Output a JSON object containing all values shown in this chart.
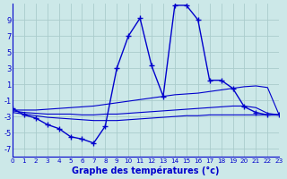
{
  "xlabel": "Graphe des températures (°c)",
  "background_color": "#cce8e8",
  "grid_color": "#aacccc",
  "line_color": "#0000cc",
  "hours": [
    0,
    1,
    2,
    3,
    4,
    5,
    6,
    7,
    8,
    9,
    10,
    11,
    12,
    13,
    14,
    15,
    16,
    17,
    18,
    19,
    20,
    21,
    22,
    23
  ],
  "temp_current": [
    -2.0,
    -2.8,
    -3.2,
    -4.0,
    -4.5,
    -5.5,
    -5.8,
    -6.3,
    -4.2,
    3.0,
    7.0,
    9.2,
    3.3,
    -0.5,
    10.8,
    10.8,
    9.0,
    1.5,
    1.5,
    0.5,
    -1.8,
    -2.5,
    -2.8,
    -2.8
  ],
  "temp_line1": [
    -2.2,
    -2.2,
    -2.2,
    -2.1,
    -2.0,
    -1.9,
    -1.8,
    -1.7,
    -1.5,
    -1.3,
    -1.1,
    -0.9,
    -0.7,
    -0.5,
    -0.3,
    -0.2,
    -0.1,
    0.1,
    0.3,
    0.5,
    0.7,
    0.8,
    0.6,
    -2.8
  ],
  "temp_line2": [
    -2.5,
    -2.7,
    -2.9,
    -3.1,
    -3.2,
    -3.3,
    -3.4,
    -3.5,
    -3.5,
    -3.5,
    -3.4,
    -3.3,
    -3.2,
    -3.1,
    -3.0,
    -2.9,
    -2.9,
    -2.8,
    -2.8,
    -2.8,
    -2.8,
    -2.8,
    -2.8,
    -2.8
  ],
  "temp_line3": [
    -2.3,
    -2.5,
    -2.6,
    -2.7,
    -2.7,
    -2.7,
    -2.8,
    -2.8,
    -2.7,
    -2.7,
    -2.6,
    -2.5,
    -2.4,
    -2.3,
    -2.2,
    -2.1,
    -2.0,
    -1.9,
    -1.8,
    -1.7,
    -1.7,
    -1.9,
    -2.6,
    -2.8
  ],
  "ylim": [
    -8,
    11
  ],
  "yticks": [
    -7,
    -5,
    -3,
    -1,
    1,
    3,
    5,
    7,
    9
  ]
}
